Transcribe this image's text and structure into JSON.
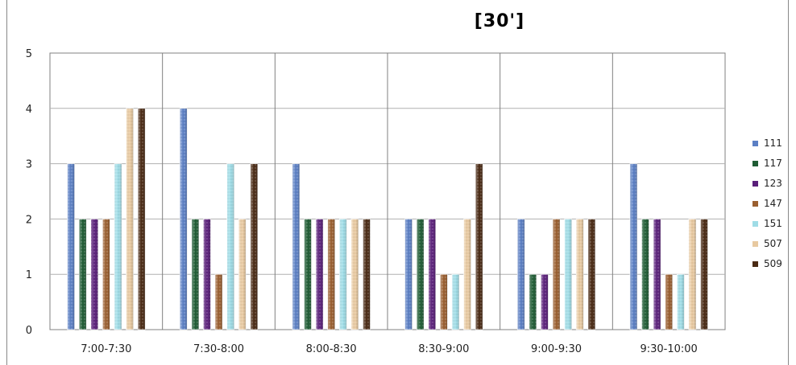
{
  "chart_data": {
    "type": "bar",
    "title": "[30']",
    "xlabel": "",
    "ylabel": "",
    "ylim": [
      0,
      5
    ],
    "yticks": [
      "0",
      "1",
      "2",
      "3",
      "4",
      "5"
    ],
    "categories": [
      "7:00-7:30",
      "7:30-8:00",
      "8:00-8:30",
      "8:30-9:00",
      "9:00-9:30",
      "9:30-10:00"
    ],
    "grid": true,
    "legend_position": "right",
    "series": [
      {
        "name": "111",
        "color": "#5b7fc4",
        "values": [
          3,
          4,
          3,
          2,
          2,
          3
        ]
      },
      {
        "name": "117",
        "color": "#1f5c34",
        "values": [
          2,
          2,
          2,
          2,
          1,
          2
        ]
      },
      {
        "name": "123",
        "color": "#5a1f7a",
        "values": [
          2,
          2,
          2,
          2,
          1,
          2
        ]
      },
      {
        "name": "147",
        "color": "#9a5f30",
        "values": [
          2,
          1,
          2,
          1,
          2,
          1
        ]
      },
      {
        "name": "151",
        "color": "#9fdce6",
        "values": [
          3,
          3,
          2,
          1,
          2,
          1
        ]
      },
      {
        "name": "507",
        "color": "#e8c9a0",
        "values": [
          4,
          2,
          2,
          2,
          2,
          2
        ]
      },
      {
        "name": "509",
        "color": "#4a2a14",
        "values": [
          4,
          3,
          2,
          3,
          2,
          2
        ]
      }
    ]
  }
}
